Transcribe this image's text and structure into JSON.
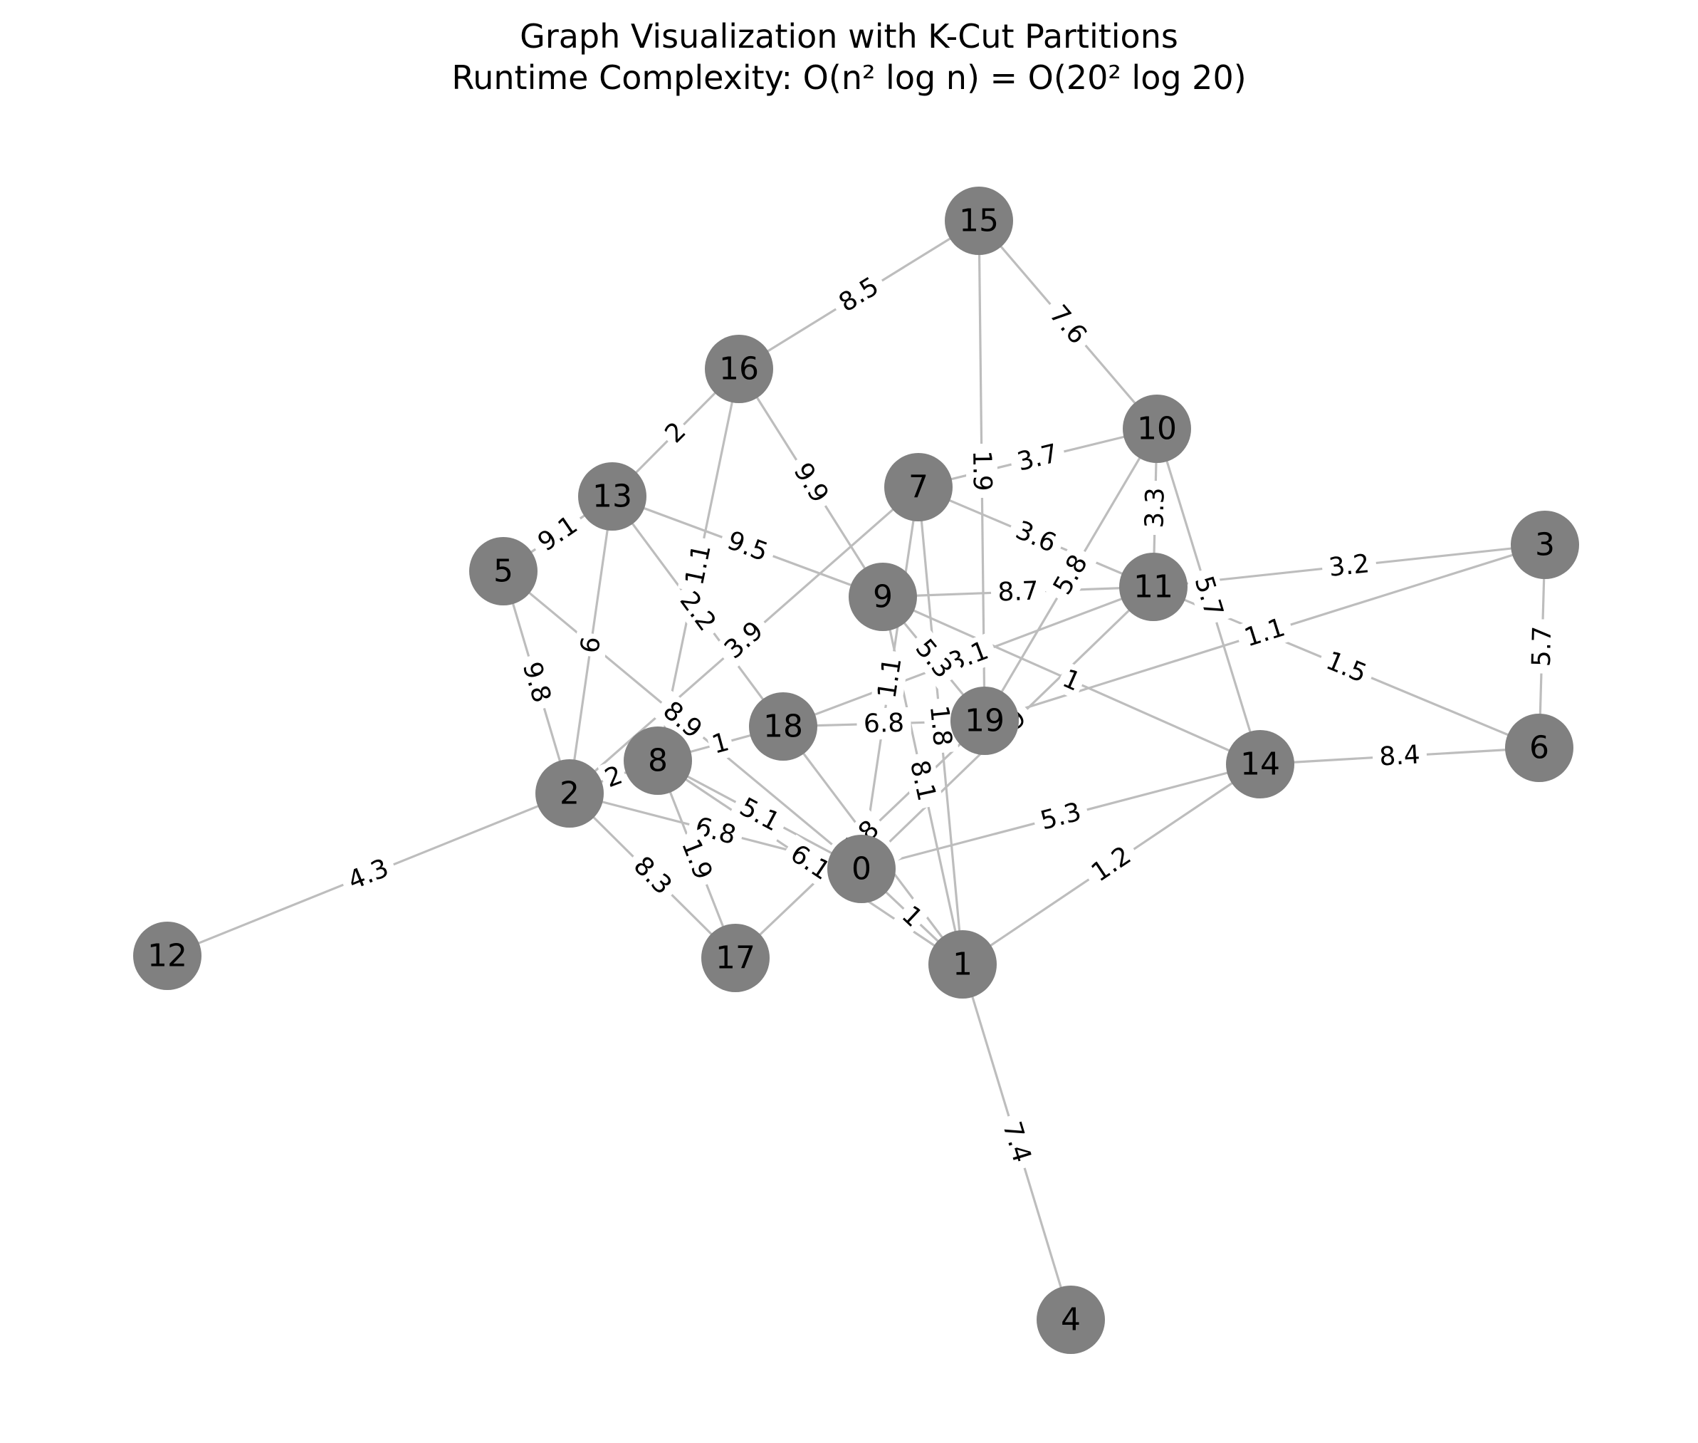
{
  "title": {
    "line1": "Graph Visualization with K-Cut Partitions",
    "line2": "Runtime Complexity: O(n² log n) = O(20² log 20)"
  },
  "colors": {
    "node": "#808080",
    "edge": "#bdbdbd",
    "label_background": "#ffffff"
  },
  "nodes": [
    {
      "id": "0",
      "label": "0"
    },
    {
      "id": "1",
      "label": "1"
    },
    {
      "id": "2",
      "label": "2"
    },
    {
      "id": "3",
      "label": "3"
    },
    {
      "id": "4",
      "label": "4"
    },
    {
      "id": "5",
      "label": "5"
    },
    {
      "id": "6",
      "label": "6"
    },
    {
      "id": "7",
      "label": "7"
    },
    {
      "id": "8",
      "label": "8"
    },
    {
      "id": "9",
      "label": "9"
    },
    {
      "id": "10",
      "label": "10"
    },
    {
      "id": "11",
      "label": "11"
    },
    {
      "id": "12",
      "label": "12"
    },
    {
      "id": "13",
      "label": "13"
    },
    {
      "id": "14",
      "label": "14"
    },
    {
      "id": "15",
      "label": "15"
    },
    {
      "id": "16",
      "label": "16"
    },
    {
      "id": "17",
      "label": "17"
    },
    {
      "id": "18",
      "label": "18"
    },
    {
      "id": "19",
      "label": "19"
    }
  ],
  "edges": [
    {
      "source": "15",
      "target": "16",
      "weight": "8.5"
    },
    {
      "source": "15",
      "target": "10",
      "weight": "7.6"
    },
    {
      "source": "15",
      "target": "19",
      "weight": "1.9"
    },
    {
      "source": "16",
      "target": "9",
      "weight": "9.9"
    },
    {
      "source": "16",
      "target": "13",
      "weight": "2"
    },
    {
      "source": "16",
      "target": "8",
      "weight": "1.1"
    },
    {
      "source": "13",
      "target": "9",
      "weight": "9.5"
    },
    {
      "source": "13",
      "target": "18",
      "weight": "2.2"
    },
    {
      "source": "13",
      "target": "2",
      "weight": "6"
    },
    {
      "source": "13",
      "target": "5",
      "weight": "9.1"
    },
    {
      "source": "10",
      "target": "7",
      "weight": "3.7"
    },
    {
      "source": "10",
      "target": "11",
      "weight": "3.3"
    },
    {
      "source": "10",
      "target": "14",
      "weight": "5.7"
    },
    {
      "source": "10",
      "target": "19",
      "weight": "5.8"
    },
    {
      "source": "7",
      "target": "11",
      "weight": "3.6"
    },
    {
      "source": "7",
      "target": "0",
      "weight": "1.1"
    },
    {
      "source": "7",
      "target": "1",
      "weight": "1.8"
    },
    {
      "source": "7",
      "target": "2",
      "weight": "3.9"
    },
    {
      "source": "11",
      "target": "9",
      "weight": "8.7"
    },
    {
      "source": "11",
      "target": "3",
      "weight": "3.2"
    },
    {
      "source": "11",
      "target": "6",
      "weight": "1.5"
    },
    {
      "source": "11",
      "target": "18",
      "weight": "3.1"
    },
    {
      "source": "11",
      "target": "0",
      "weight": "4.9"
    },
    {
      "source": "3",
      "target": "6",
      "weight": "5.7"
    },
    {
      "source": "3",
      "target": "19",
      "weight": "1.1"
    },
    {
      "source": "9",
      "target": "19",
      "weight": "5.3"
    },
    {
      "source": "9",
      "target": "14",
      "weight": "1"
    },
    {
      "source": "9",
      "target": "1",
      "weight": "8.1"
    },
    {
      "source": "6",
      "target": "14",
      "weight": "8.4"
    },
    {
      "source": "18",
      "target": "19",
      "weight": "6.8"
    },
    {
      "source": "18",
      "target": "8",
      "weight": "1"
    },
    {
      "source": "18",
      "target": "1",
      "weight": "1.4"
    },
    {
      "source": "5",
      "target": "2",
      "weight": "9.8"
    },
    {
      "source": "5",
      "target": "0",
      "weight": "8.9"
    },
    {
      "source": "2",
      "target": "8",
      "weight": "2"
    },
    {
      "source": "2",
      "target": "0",
      "weight": "6.8"
    },
    {
      "source": "2",
      "target": "17",
      "weight": "8.3"
    },
    {
      "source": "2",
      "target": "12",
      "weight": "4.3"
    },
    {
      "source": "8",
      "target": "1",
      "weight": "6.1"
    },
    {
      "source": "8",
      "target": "0",
      "weight": "5.1"
    },
    {
      "source": "8",
      "target": "17",
      "weight": "1.9"
    },
    {
      "source": "17",
      "target": "19",
      "weight": "4.8"
    },
    {
      "source": "0",
      "target": "14",
      "weight": "5.3"
    },
    {
      "source": "0",
      "target": "1",
      "weight": "1"
    },
    {
      "source": "14",
      "target": "1",
      "weight": "1.2"
    },
    {
      "source": "1",
      "target": "4",
      "weight": "7.4"
    }
  ]
}
